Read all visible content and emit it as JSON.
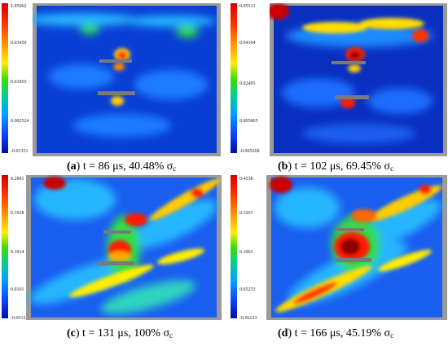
{
  "figure": {
    "panels": [
      {
        "letter": "a",
        "caption_rest": ") t = 86 μs, 40.48% σ",
        "caption_sub": "c",
        "colorbar_ticks": [
          "1.05062",
          "0.03459",
          "0.01855",
          "0.002524",
          "-0.01351"
        ]
      },
      {
        "letter": "b",
        "caption_rest": ") t = 102 μs, 69.45% σ",
        "caption_sub": "c",
        "colorbar_ticks": [
          "0.05513",
          "0.04104",
          "0.02495",
          "0.005865",
          "-0.005268"
        ]
      },
      {
        "letter": "c",
        "caption_rest": ") t = 131 μs, 100% σ",
        "caption_sub": "c",
        "colorbar_ticks": [
          "0.2841",
          "0.1928",
          "0.1014",
          "0.0101",
          "-0.05123"
        ]
      },
      {
        "letter": "d",
        "caption_rest": ") t = 166 μs, 45.19% σ",
        "caption_sub": "c",
        "colorbar_ticks": [
          "0.4538",
          "0.3201",
          "0.1063",
          "0.05253",
          "-0.06123"
        ]
      }
    ]
  }
}
